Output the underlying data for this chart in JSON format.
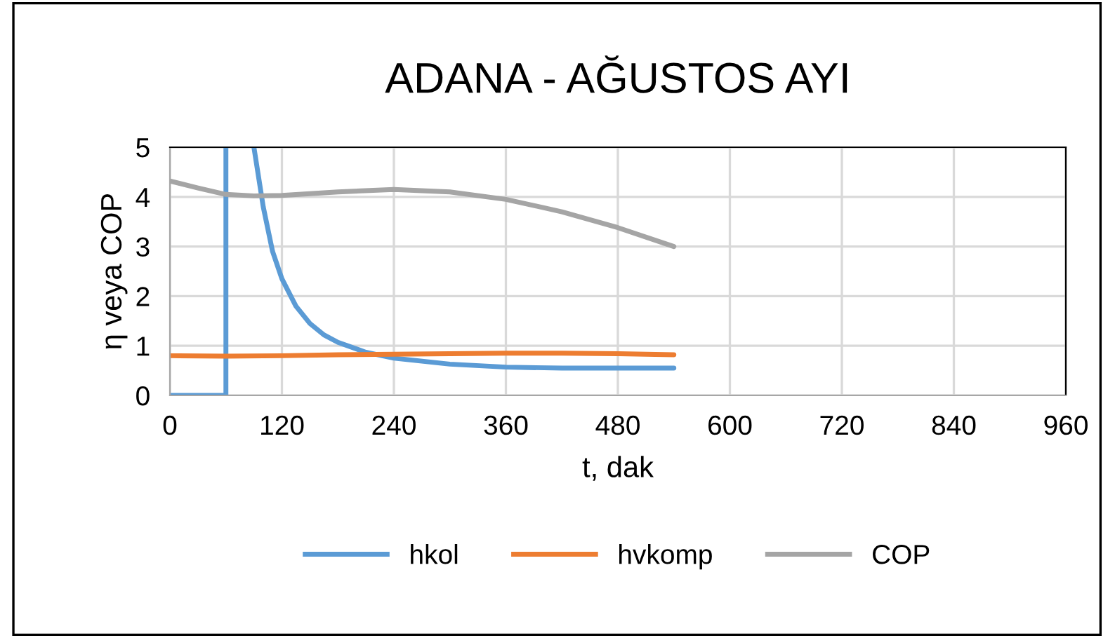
{
  "chart_data": {
    "type": "line",
    "title": "ADANA - AĞUSTOS AYI",
    "xlabel": "t, dak",
    "ylabel": "η veya COP",
    "xlim": [
      0,
      960
    ],
    "ylim": [
      0,
      5
    ],
    "xticks": [
      0,
      120,
      240,
      360,
      480,
      600,
      720,
      840,
      960
    ],
    "yticks": [
      0,
      1,
      2,
      3,
      4,
      5
    ],
    "grid": true,
    "legend": "bottom",
    "marker": "none",
    "line_style": "solid",
    "series": [
      {
        "name": "hkol",
        "color": "#5b9bd5",
        "x": [
          0,
          60,
          60,
          75,
          90,
          100,
          110,
          120,
          135,
          150,
          165,
          180,
          210,
          240,
          300,
          360,
          420,
          480,
          540
        ],
        "values": [
          0,
          0,
          5,
          null,
          5,
          3.8,
          2.9,
          2.35,
          1.8,
          1.45,
          1.22,
          1.07,
          0.87,
          0.75,
          0.63,
          0.57,
          0.55,
          0.55,
          0.55
        ]
      },
      {
        "name": "hvkomp",
        "color": "#ed7d31",
        "x": [
          0,
          60,
          120,
          180,
          240,
          300,
          360,
          420,
          480,
          540
        ],
        "values": [
          0.8,
          0.79,
          0.8,
          0.82,
          0.83,
          0.84,
          0.85,
          0.85,
          0.84,
          0.82
        ]
      },
      {
        "name": "COP",
        "color": "#a5a5a5",
        "x": [
          0,
          30,
          60,
          90,
          120,
          180,
          240,
          300,
          360,
          420,
          480,
          540
        ],
        "values": [
          4.32,
          4.18,
          4.05,
          4.02,
          4.03,
          4.1,
          4.15,
          4.1,
          3.95,
          3.7,
          3.38,
          3.0
        ]
      }
    ]
  }
}
